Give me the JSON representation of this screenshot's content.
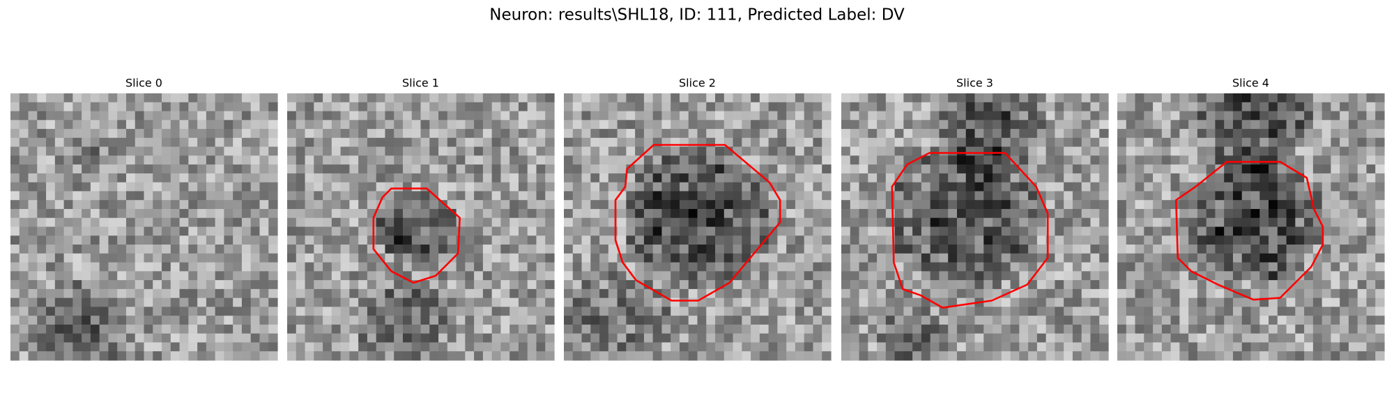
{
  "title": "Neuron: results\\SHL18, ID: 111, Predicted Label: DV",
  "panels": [
    {
      "title": "Slice 0"
    },
    {
      "title": "Slice 1"
    },
    {
      "title": "Slice 2"
    },
    {
      "title": "Slice 3"
    },
    {
      "title": "Slice 4"
    }
  ]
}
